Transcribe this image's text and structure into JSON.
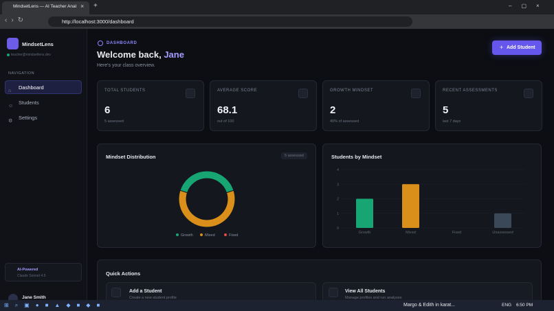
{
  "browser": {
    "tab_title": "MindsetLens — AI Teacher Anal",
    "url": "http://localhost:3000/dashboard"
  },
  "sidebar": {
    "brand": "MindsetLens",
    "email": "teacher@mindsetlens.dev",
    "nav_label": "NAVIGATION",
    "nav": [
      "Dashboard",
      "Students",
      "Settings"
    ],
    "ai_title": "AI-Powered",
    "ai_model": "Claude Sonnet 4.5",
    "user_initials": "JS",
    "user_name": "Jane Smith"
  },
  "header": {
    "eyebrow": "DASHBOARD",
    "greeting": "Welcome back,",
    "name": "Jane",
    "subtitle": "Here's your class overview.",
    "button": "Add Student"
  },
  "stats": [
    {
      "label": "TOTAL STUDENTS",
      "value": 6,
      "note": "5 assessed"
    },
    {
      "label": "AVERAGE SCORE",
      "value": 68.1,
      "note": "out of 100"
    },
    {
      "label": "GROWTH MINDSET",
      "value": 2,
      "note": "40% of assessed"
    },
    {
      "label": "RECENT ASSESSMENTS",
      "value": 5,
      "note": "last 7 days"
    }
  ],
  "chart_data": [
    {
      "type": "pie",
      "title": "Mindset Distribution",
      "badge": "5 assessed",
      "categories": [
        "Growth",
        "Mixed",
        "Fixed"
      ],
      "values": [
        2,
        3,
        0
      ],
      "colors": [
        "#17a574",
        "#d98f19",
        "#e5484d"
      ],
      "legend": "bottom"
    },
    {
      "type": "bar",
      "title": "Students by Mindset",
      "categories": [
        "Growth",
        "Mixed",
        "Fixed",
        "Unassessed"
      ],
      "values": [
        2,
        3,
        0,
        1
      ],
      "colors": [
        "#17a574",
        "#d98f19",
        "#e5484d",
        "#3b4858"
      ],
      "ylim": [
        0,
        4
      ],
      "yticks": [
        0,
        1,
        2,
        3,
        4
      ],
      "grid": true
    }
  ],
  "quick_actions": {
    "title": "Quick Actions",
    "items": [
      {
        "title": "Add a Student",
        "description": "Create a new student profile"
      },
      {
        "title": "View All Students",
        "description": "Manage profiles and run analyses"
      }
    ]
  },
  "taskbar": {
    "media": "Margo & Edith in karat...",
    "lang": "ENG",
    "time": "6:50 PM"
  }
}
